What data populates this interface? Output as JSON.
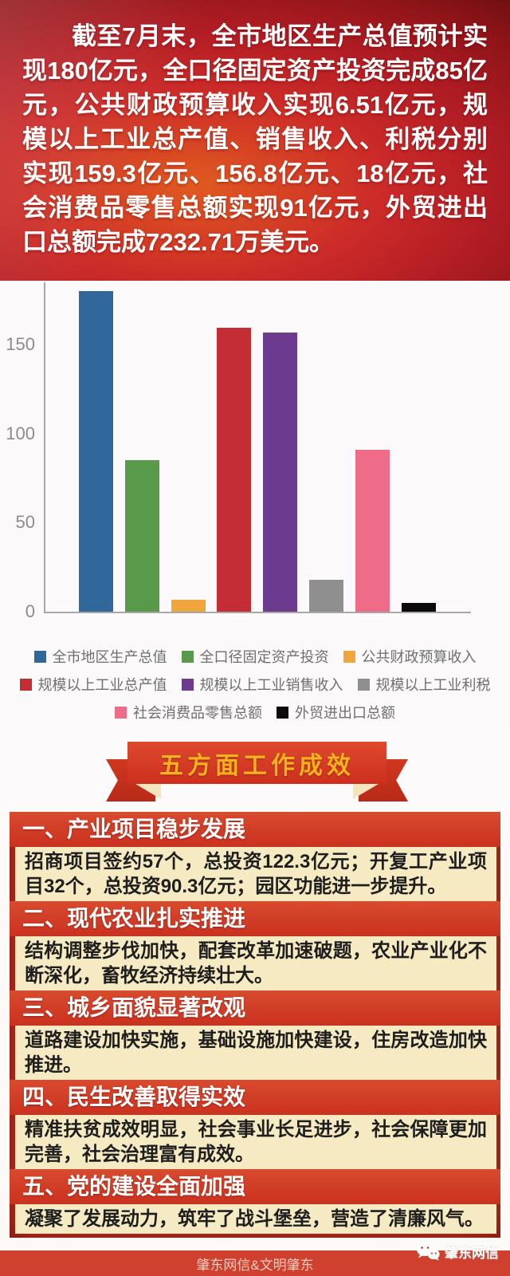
{
  "header": {
    "paragraph": "截至7月末，全市地区生产总值预计实现180亿元，全口径固定资产投资完成85亿元，公共财政预算收入实现6.51亿元，规模以上工业总产值、销售收入、利税分别实现159.3亿元、156.8亿元、18亿元，社会消费品零售总额实现91亿元，外贸进出口总额完成7232.71万美元。"
  },
  "chart_data": {
    "type": "bar",
    "title": "",
    "xlabel": "",
    "ylabel": "",
    "categories": [
      "全市地区生产总值",
      "全口径固定资产投资",
      "公共财政预算收入",
      "规模以上工业总产值",
      "规模以上工业销售收入",
      "规模以上工业利税",
      "社会消费品零售总额",
      "外贸进出口总额"
    ],
    "series": [
      {
        "name": "全市地区生产总值",
        "value": 180,
        "color": "#31689b"
      },
      {
        "name": "全口径固定资产投资",
        "value": 85,
        "color": "#58994a"
      },
      {
        "name": "公共财政预算收入",
        "value": 6.51,
        "color": "#f0a63c"
      },
      {
        "name": "规模以上工业总产值",
        "value": 159.3,
        "color": "#c52d35"
      },
      {
        "name": "规模以上工业销售收入",
        "value": 156.8,
        "color": "#6c3b90"
      },
      {
        "name": "规模以上工业利税",
        "value": 18,
        "color": "#8f8f8f"
      },
      {
        "name": "社会消费品零售总额",
        "value": 91,
        "color": "#ee6c87"
      },
      {
        "name": "外贸进出口总额",
        "value": 4.8,
        "color": "#0b0b0b"
      }
    ],
    "yticks": [
      0,
      50,
      100,
      150
    ],
    "ylim": [
      0,
      185
    ],
    "grid": false,
    "legend_position": "bottom",
    "legend_rows": [
      3,
      3,
      2
    ]
  },
  "ribbon": {
    "title": "五方面工作成效"
  },
  "sections": {
    "items": [
      {
        "title": "一、产业项目稳步发展",
        "content": "招商项目签约57个，总投资122.3亿元；开复工产业项目32个，总投资90.3亿元；园区功能进一步提升。"
      },
      {
        "title": "二、现代农业扎实推进",
        "content": "结构调整步伐加快，配套改革加速破题，农业产业化不断深化，畜牧经济持续壮大。"
      },
      {
        "title": "三、城乡面貌显著改观",
        "content": "道路建设加快实施，基础设施加快建设，住房改造加快推进。"
      },
      {
        "title": "四、民生改善取得实效",
        "content": "精准扶贫成效明显，社会事业长足进步，社会保障更加完善，社会治理富有成效。"
      },
      {
        "title": "五、党的建设全面加强",
        "content": "凝聚了发展动力，筑牢了战斗堡垒，营造了清廉风气。"
      }
    ]
  },
  "footer": {
    "text": "肇东网信&文明肇东"
  },
  "watermark": {
    "label": "肇东网信",
    "icon": "wechat-icon"
  }
}
